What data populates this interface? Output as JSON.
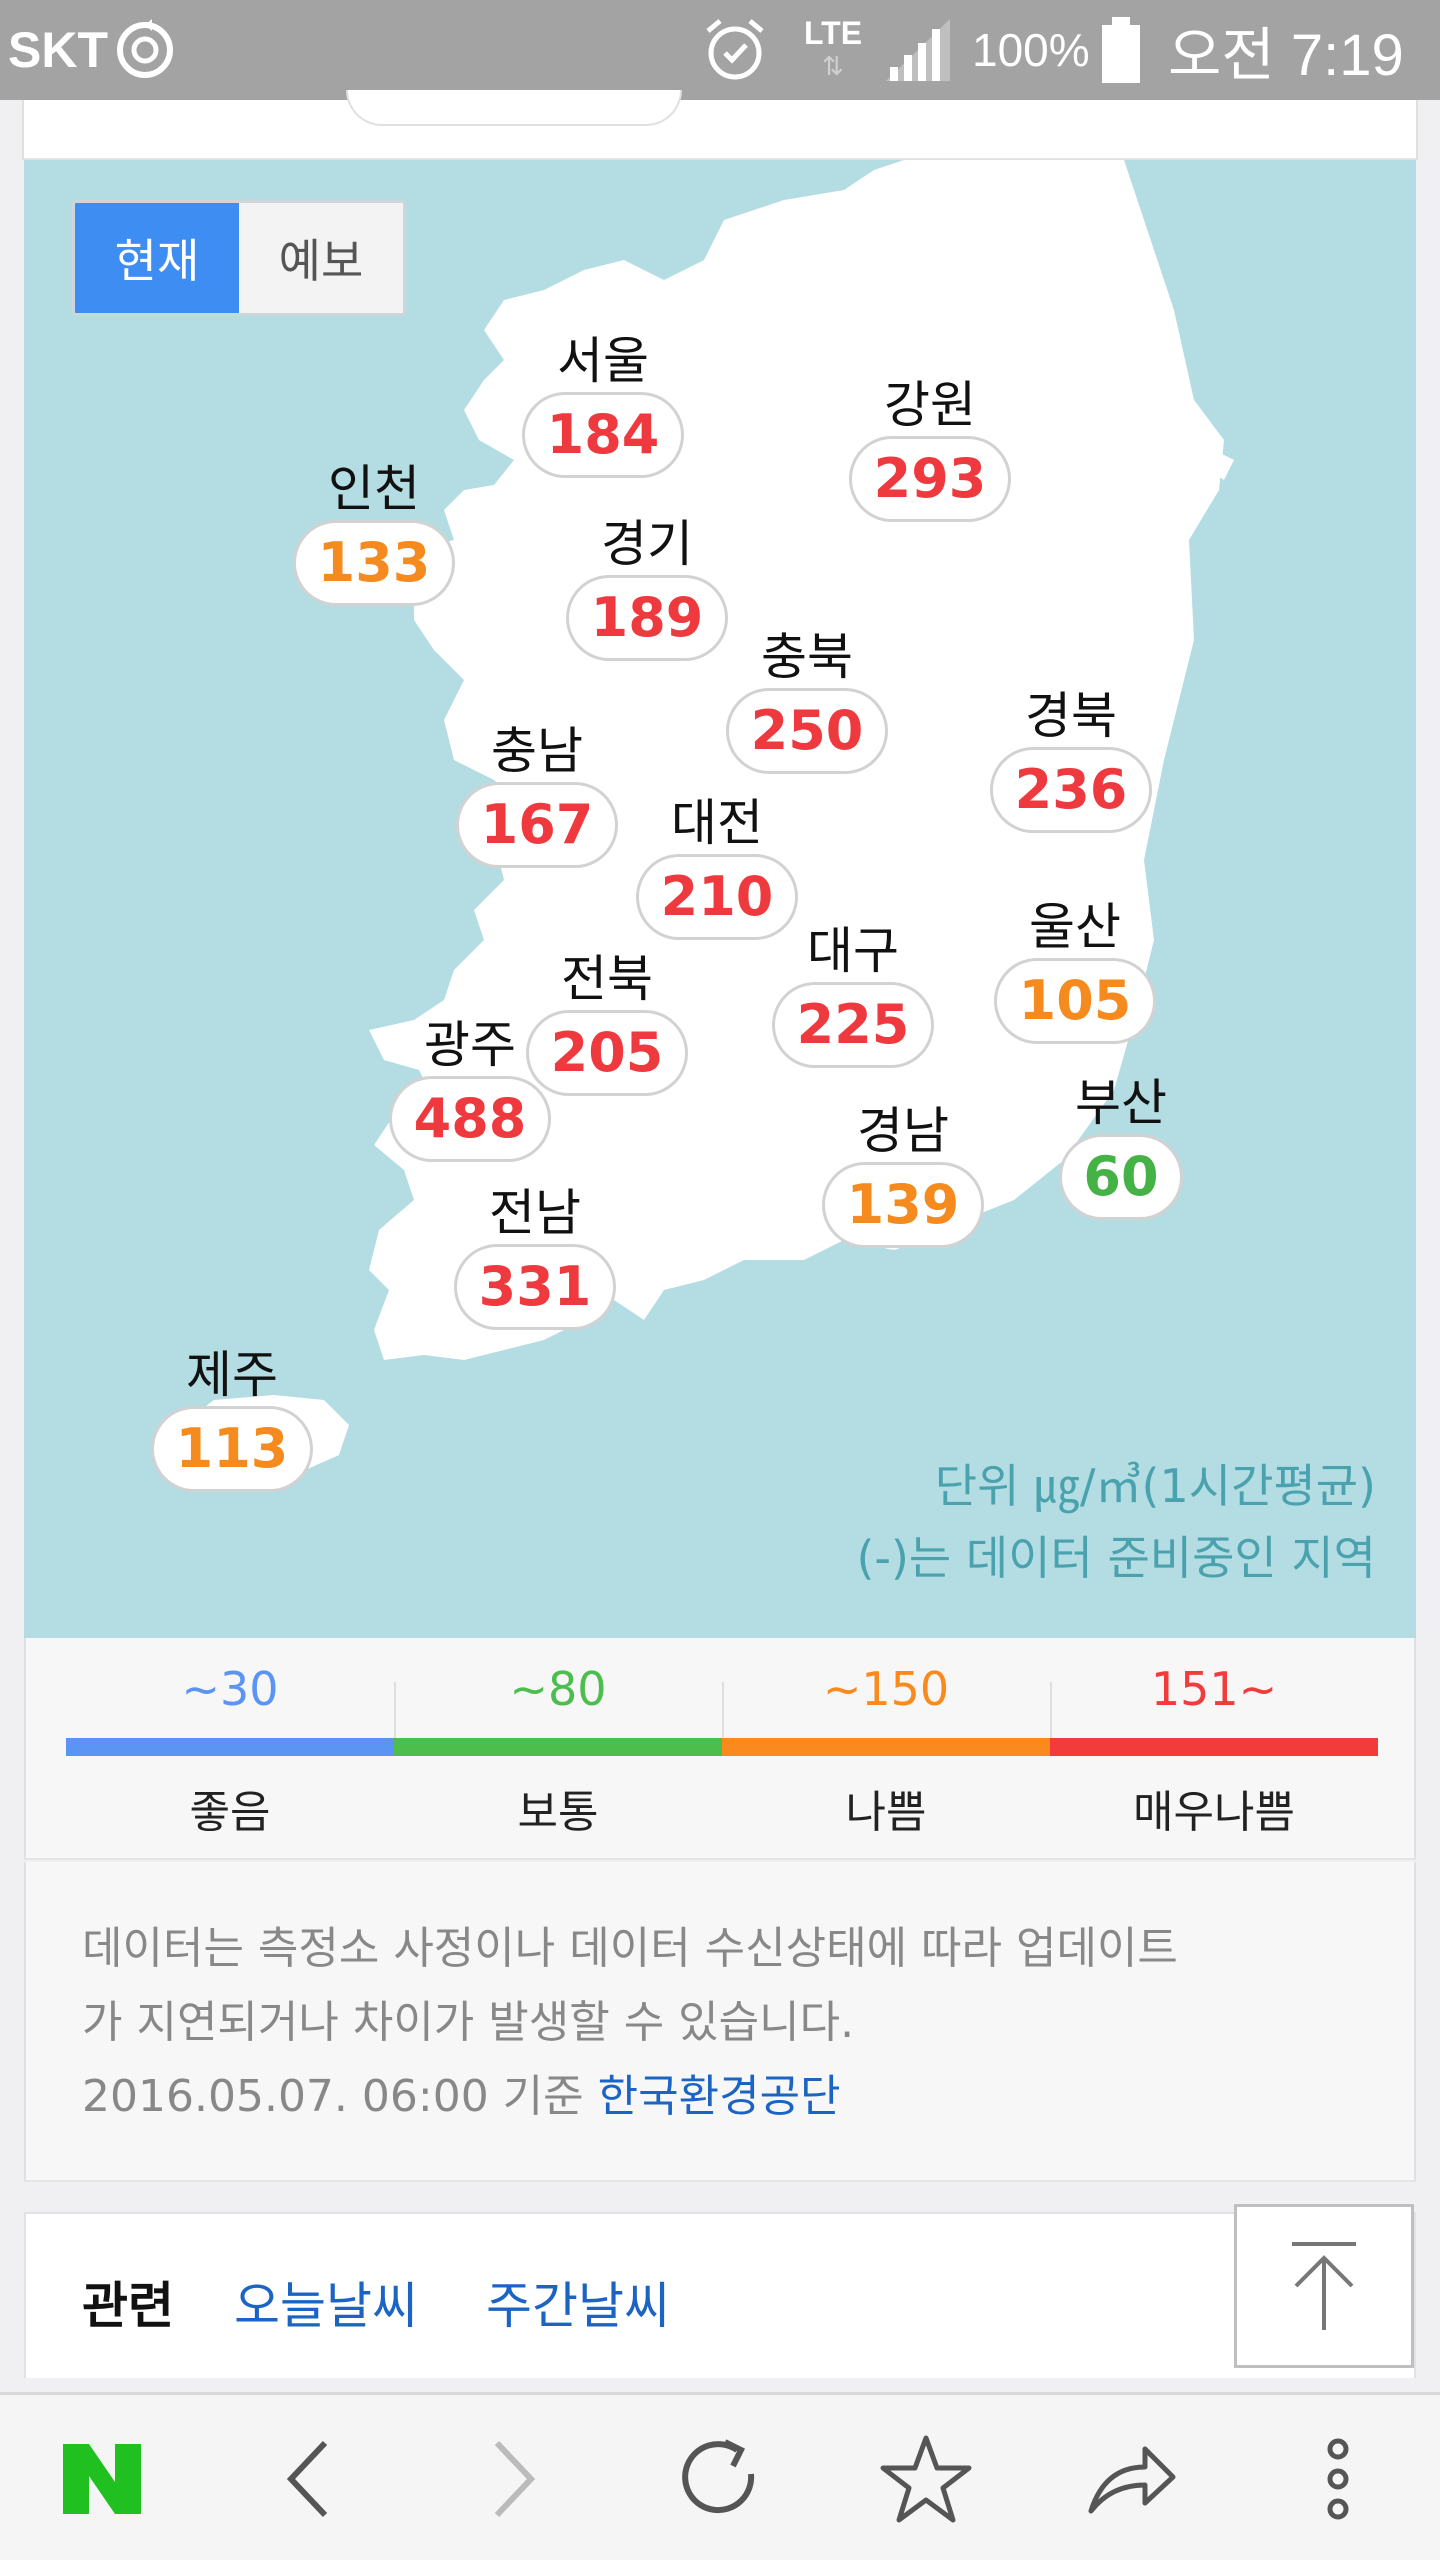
{
  "status_bar": {
    "carrier": "SKT",
    "battery_percent": "100%",
    "network": "LTE",
    "time": "오전 7:19"
  },
  "map": {
    "toggle": {
      "current": "현재",
      "forecast": "예보",
      "selected": "current"
    },
    "regions": [
      {
        "name": "서울",
        "value": "184",
        "level": "very-bad"
      },
      {
        "name": "강원",
        "value": "293",
        "level": "very-bad"
      },
      {
        "name": "인천",
        "value": "133",
        "level": "bad"
      },
      {
        "name": "경기",
        "value": "189",
        "level": "very-bad"
      },
      {
        "name": "충북",
        "value": "250",
        "level": "very-bad"
      },
      {
        "name": "경북",
        "value": "236",
        "level": "very-bad"
      },
      {
        "name": "충남",
        "value": "167",
        "level": "very-bad"
      },
      {
        "name": "대전",
        "value": "210",
        "level": "very-bad"
      },
      {
        "name": "울산",
        "value": "105",
        "level": "bad"
      },
      {
        "name": "전북",
        "value": "205",
        "level": "very-bad"
      },
      {
        "name": "대구",
        "value": "225",
        "level": "very-bad"
      },
      {
        "name": "광주",
        "value": "488",
        "level": "very-bad"
      },
      {
        "name": "부산",
        "value": "60",
        "level": "normal"
      },
      {
        "name": "경남",
        "value": "139",
        "level": "bad"
      },
      {
        "name": "전남",
        "value": "331",
        "level": "very-bad"
      },
      {
        "name": "제주",
        "value": "113",
        "level": "bad"
      }
    ],
    "unit_line": "단위 ㎍/㎥(1시간평균)",
    "missing_note": "(-)는 데이터 준비중인 지역"
  },
  "legend": [
    {
      "threshold": "~30",
      "label": "좋음",
      "color": "#5c94f3"
    },
    {
      "threshold": "~80",
      "label": "보통",
      "color": "#4cbe4c"
    },
    {
      "threshold": "~150",
      "label": "나쁨",
      "color": "#fa8a1e"
    },
    {
      "threshold": "151~",
      "label": "매우나쁨",
      "color": "#f23b3b"
    }
  ],
  "level_colors": {
    "normal": "#44b244",
    "bad": "#f58a1f",
    "very-bad": "#ee3a3f"
  },
  "info": {
    "notice_line1": "데이터는 측정소 사정이나 데이터 수신상태에 따라 업데이트",
    "notice_line2": "가 지연되거나 차이가 발생할 수 있습니다.",
    "timestamp": "2016.05.07. 06:00 기준",
    "source": "한국환경공단"
  },
  "related": {
    "title": "관련",
    "links": [
      "오늘날씨",
      "주간날씨"
    ]
  },
  "bottom_nav": [
    "naver-logo",
    "back",
    "forward",
    "refresh",
    "bookmark",
    "share",
    "more"
  ]
}
